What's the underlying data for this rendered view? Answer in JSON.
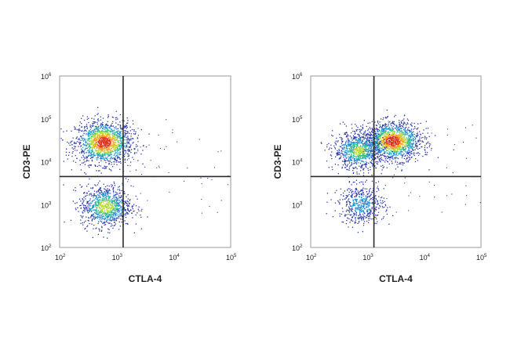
{
  "colors": {
    "background": "#ffffff",
    "frame": "#9a9a9a",
    "gate": "#2a2a2a",
    "text": "#222222",
    "density_low": "#2b3aa8",
    "density_mid_low": "#1f8fd0",
    "density_mid": "#2fbf8f",
    "density_mid_high": "#b7d93a",
    "density_high": "#f3a11f",
    "density_peak": "#e0301e"
  },
  "chart_data": [
    {
      "type": "scatter",
      "style": "density-colored flow cytometry dot plot with quadrant gate",
      "xlabel": "CTLA-4",
      "ylabel": "CD3-PE",
      "x_scale": "log",
      "y_scale": "log",
      "xlim": [
        100,
        100000
      ],
      "ylim": [
        100,
        1000000
      ],
      "x_ticks": [
        {
          "base": "10",
          "exp": "2",
          "value": 100
        },
        {
          "base": "10",
          "exp": "3",
          "value": 1000
        },
        {
          "base": "10",
          "exp": "4",
          "value": 10000
        },
        {
          "base": "10",
          "exp": "5",
          "value": 100000
        }
      ],
      "y_ticks": [
        {
          "base": "10",
          "exp": "2",
          "value": 100
        },
        {
          "base": "10",
          "exp": "3",
          "value": 1000
        },
        {
          "base": "10",
          "exp": "4",
          "value": 10000
        },
        {
          "base": "10",
          "exp": "5",
          "value": 100000
        },
        {
          "base": "10",
          "exp": "6",
          "value": 1000000
        }
      ],
      "gate": {
        "x": 1300,
        "y": 4500
      },
      "populations": [
        {
          "center_x": 600,
          "center_y": 28000,
          "spread_log_x": 0.25,
          "spread_log_y": 0.25,
          "relative_density": 1.0
        },
        {
          "center_x": 650,
          "center_y": 900,
          "spread_log_x": 0.22,
          "spread_log_y": 0.24,
          "relative_density": 0.65
        }
      ],
      "grid": false,
      "legend": "none"
    },
    {
      "type": "scatter",
      "style": "density-colored flow cytometry dot plot with quadrant gate",
      "xlabel": "CTLA-4",
      "ylabel": "CD3-PE",
      "x_scale": "log",
      "y_scale": "log",
      "xlim": [
        100,
        100000
      ],
      "ylim": [
        100,
        1000000
      ],
      "x_ticks": [
        {
          "base": "10",
          "exp": "2",
          "value": 100
        },
        {
          "base": "10",
          "exp": "3",
          "value": 1000
        },
        {
          "base": "10",
          "exp": "4",
          "value": 10000
        },
        {
          "base": "10",
          "exp": "5",
          "value": 100000
        }
      ],
      "y_ticks": [
        {
          "base": "10",
          "exp": "2",
          "value": 100
        },
        {
          "base": "10",
          "exp": "3",
          "value": 1000
        },
        {
          "base": "10",
          "exp": "4",
          "value": 10000
        },
        {
          "base": "10",
          "exp": "5",
          "value": 100000
        },
        {
          "base": "10",
          "exp": "6",
          "value": 1000000
        }
      ],
      "gate": {
        "x": 1300,
        "y": 4500
      },
      "populations": [
        {
          "center_x": 2800,
          "center_y": 30000,
          "spread_log_x": 0.25,
          "spread_log_y": 0.22,
          "relative_density": 1.0
        },
        {
          "center_x": 700,
          "center_y": 18000,
          "spread_log_x": 0.22,
          "spread_log_y": 0.22,
          "relative_density": 0.6
        },
        {
          "center_x": 800,
          "center_y": 1000,
          "spread_log_x": 0.2,
          "spread_log_y": 0.22,
          "relative_density": 0.35
        }
      ],
      "grid": false,
      "legend": "none"
    }
  ]
}
